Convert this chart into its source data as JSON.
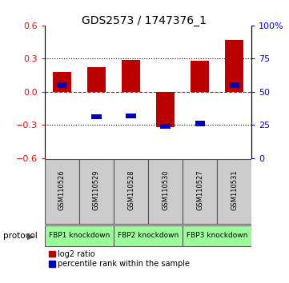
{
  "title": "GDS2573 / 1747376_1",
  "samples": [
    "GSM110526",
    "GSM110529",
    "GSM110528",
    "GSM110530",
    "GSM110527",
    "GSM110531"
  ],
  "log2_ratios": [
    0.18,
    0.22,
    0.29,
    -0.32,
    0.28,
    0.47
  ],
  "percentile_ranks_pct": [
    57,
    33,
    34,
    22,
    28,
    57
  ],
  "groups": [
    {
      "label": "FBP1 knockdown",
      "start": 0,
      "end": 1
    },
    {
      "label": "FBP2 knockdown",
      "start": 2,
      "end": 3
    },
    {
      "label": "FBP3 knockdown",
      "start": 4,
      "end": 5
    }
  ],
  "ylim_left": [
    -0.6,
    0.6
  ],
  "ylim_right": [
    0,
    100
  ],
  "yticks_left": [
    -0.6,
    -0.3,
    0.0,
    0.3,
    0.6
  ],
  "yticks_right": [
    0,
    25,
    50,
    75,
    100
  ],
  "bar_color_red": "#bb0000",
  "bar_color_blue": "#0000bb",
  "bar_width": 0.55,
  "blue_bar_width": 0.28,
  "dashed_zero_color": "#dd0000",
  "bg_color": "#ffffff",
  "sample_box_color": "#cccccc",
  "group_box_color": "#99ff99",
  "title_fontsize": 10,
  "tick_fontsize": 8,
  "legend_fontsize": 7
}
